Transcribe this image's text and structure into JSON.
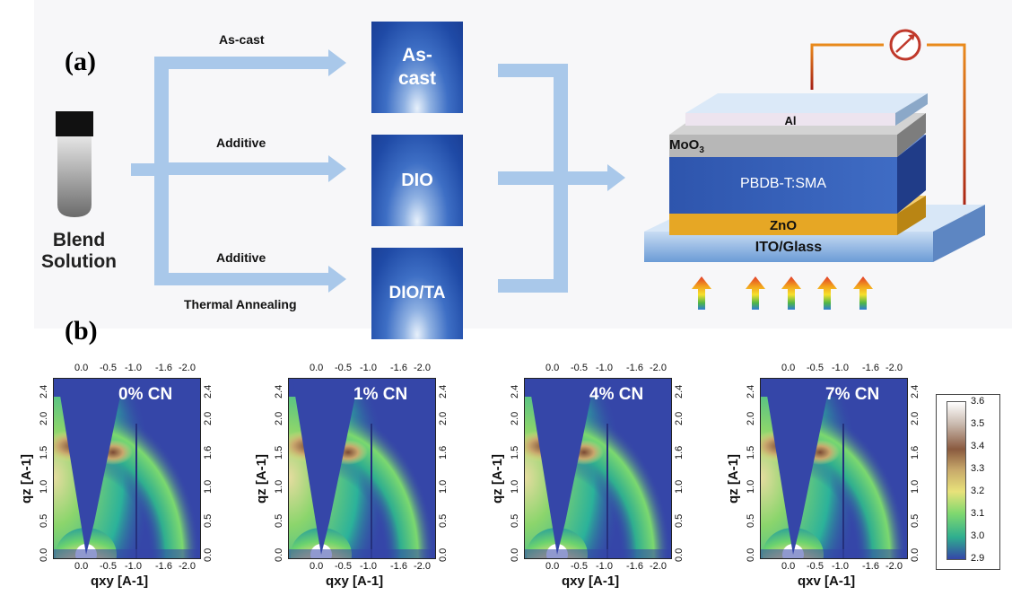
{
  "panel_a": {
    "label": "(a)",
    "blend_solution": [
      "Blend",
      "Solution"
    ],
    "arrow_labels": {
      "ascast": "As-cast",
      "additive1": "Additive",
      "additive2": "Additive",
      "thermal": "Thermal Annealing"
    },
    "squares": [
      [
        "As-",
        "cast"
      ],
      [
        "DIO"
      ],
      [
        "DIO/TA"
      ]
    ],
    "device": {
      "al": "Al",
      "moo3": "MoO",
      "moo3_sub": "3",
      "active": "PBDB-T:SMA",
      "zno": "ZnO",
      "ito": "ITO/Glass"
    }
  },
  "panel_b": {
    "label": "(b)",
    "plots": [
      {
        "title": "0% CN"
      },
      {
        "title": "1% CN"
      },
      {
        "title": "4% CN"
      },
      {
        "title": "7% CN"
      }
    ],
    "x_ticks": [
      "0.0",
      "-0.5",
      "-1.0",
      "-1.6",
      "-2.0"
    ],
    "y_ticks": [
      "0.0",
      "0.5",
      "1.0",
      "1.5",
      "2.0",
      "2.4"
    ],
    "top_ticks": [
      "0.0",
      "-0.5",
      "-1.0",
      "-1.6",
      "-2.0"
    ],
    "right_ticks": [
      "0.0",
      "0.5",
      "1.0",
      "1.6",
      "2.0",
      "2.4"
    ],
    "xlabels": [
      "qxy [A-1]",
      "qxy [A-1]",
      "qxy [A-1]",
      "qxv [A-1]"
    ],
    "ylabel": "qz [A-1]",
    "colorbar": {
      "ticks": [
        "3.6",
        "3.5",
        "3.4",
        "3.3",
        "3.2",
        "3.1",
        "3.0",
        "2.9"
      ],
      "colors": [
        "#ffffff",
        "#c9b9ae",
        "#8a5a3f",
        "#c7a86a",
        "#e8e27a",
        "#7fd86f",
        "#2fae8f",
        "#3546a8"
      ]
    }
  }
}
